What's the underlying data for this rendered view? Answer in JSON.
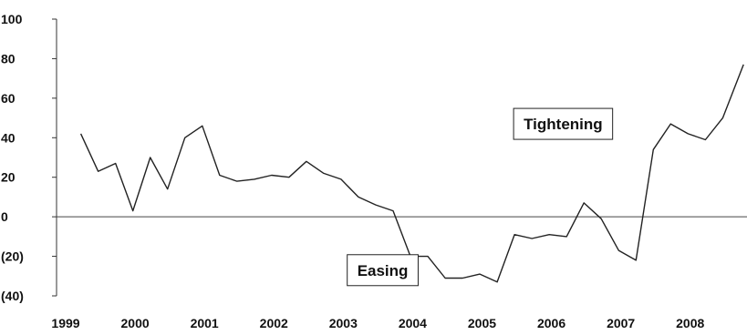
{
  "chart_data": {
    "type": "line",
    "title": "",
    "xlabel": "",
    "ylabel": "",
    "xlim": [
      1999.0,
      2008.95
    ],
    "ylim": [
      -40,
      100
    ],
    "grid": false,
    "legend": "none",
    "line_color": "#222222",
    "zero_line_color": "#444444",
    "x_ticks": [
      {
        "value": 1999,
        "label": "1999"
      },
      {
        "value": 2000,
        "label": "2000"
      },
      {
        "value": 2001,
        "label": "2001"
      },
      {
        "value": 2002,
        "label": "2002"
      },
      {
        "value": 2003,
        "label": "2003"
      },
      {
        "value": 2004,
        "label": "2004"
      },
      {
        "value": 2005,
        "label": "2005"
      },
      {
        "value": 2006,
        "label": "2006"
      },
      {
        "value": 2007,
        "label": "2007"
      },
      {
        "value": 2008,
        "label": "2008"
      }
    ],
    "y_ticks": [
      {
        "value": 100,
        "label": "100"
      },
      {
        "value": 80,
        "label": "80"
      },
      {
        "value": 60,
        "label": "60"
      },
      {
        "value": 40,
        "label": "40"
      },
      {
        "value": 20,
        "label": "20"
      },
      {
        "value": 0,
        "label": "0"
      },
      {
        "value": -20,
        "label": "(20)"
      },
      {
        "value": -40,
        "label": "(40)"
      }
    ],
    "series": [
      {
        "x": [
          1999.35,
          1999.6,
          1999.85,
          2000.1,
          2000.35,
          2000.6,
          2000.85,
          2001.1,
          2001.35,
          2001.6,
          2001.85,
          2002.1,
          2002.35,
          2002.6,
          2002.85,
          2003.1,
          2003.35,
          2003.6,
          2003.85,
          2004.1,
          2004.35,
          2004.6,
          2004.85,
          2005.1,
          2005.35,
          2005.6,
          2005.85,
          2006.1,
          2006.35,
          2006.6,
          2006.85,
          2007.1,
          2007.35,
          2007.6,
          2007.85,
          2008.1,
          2008.35,
          2008.6,
          2008.9
        ],
        "y": [
          42,
          23,
          27,
          3,
          30,
          14,
          40,
          46,
          21,
          18,
          19,
          21,
          20,
          28,
          22,
          19,
          10,
          6,
          3,
          -20,
          -20,
          -31,
          -31,
          -29,
          -33,
          -9,
          -11,
          -9,
          -10,
          7,
          -1,
          -17,
          -22,
          34,
          47,
          42,
          39,
          50,
          77
        ]
      }
    ],
    "annotations": [
      {
        "text": "Tightening",
        "x": 2006.3,
        "y": 47
      },
      {
        "text": "Easing",
        "x": 2003.7,
        "y": -27
      }
    ]
  }
}
